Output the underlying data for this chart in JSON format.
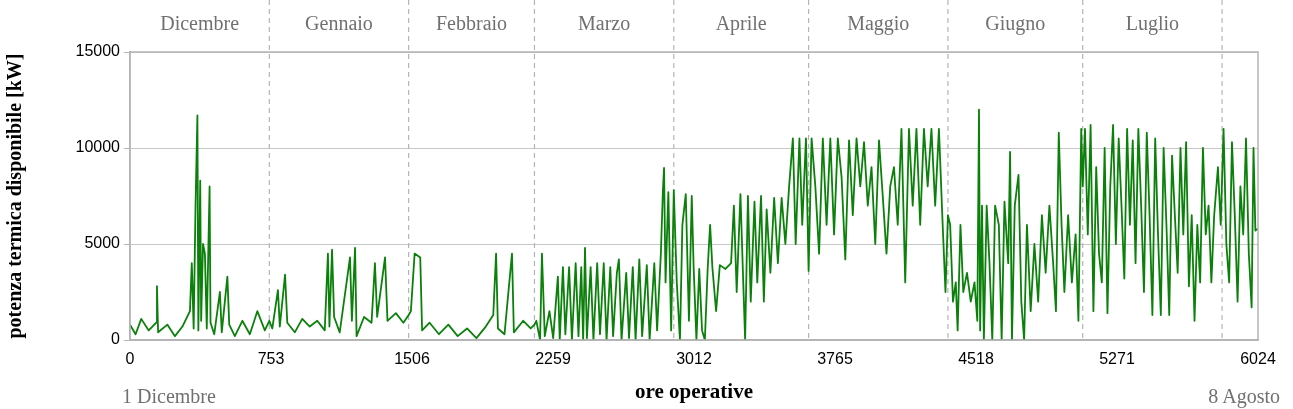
{
  "chart_data": {
    "type": "line",
    "xlabel": "ore operative",
    "ylabel": "potenza termica disponibile [kW]",
    "x": [
      0,
      30,
      60,
      100,
      140,
      144,
      150,
      200,
      240,
      280,
      320,
      330,
      340,
      350,
      360,
      365,
      375,
      380,
      390,
      400,
      410,
      425,
      430,
      450,
      480,
      490,
      520,
      530,
      560,
      600,
      640,
      680,
      720,
      744,
      760,
      790,
      800,
      828,
      840,
      880,
      920,
      960,
      1000,
      1040,
      1057,
      1065,
      1079,
      1090,
      1120,
      1175,
      1185,
      1202,
      1210,
      1250,
      1290,
      1308,
      1320,
      1362,
      1375,
      1420,
      1460,
      1488,
      1500,
      1520,
      1550,
      1560,
      1600,
      1650,
      1700,
      1750,
      1800,
      1850,
      1900,
      1940,
      1955,
      1965,
      2000,
      2040,
      2050,
      2100,
      2140,
      2160,
      2170,
      2190,
      2200,
      2215,
      2240,
      2260,
      2285,
      2295,
      2312,
      2325,
      2345,
      2360,
      2380,
      2395,
      2410,
      2420,
      2430,
      2440,
      2460,
      2475,
      2495,
      2510,
      2530,
      2545,
      2565,
      2580,
      2600,
      2611,
      2625,
      2650,
      2665,
      2685,
      2700,
      2720,
      2735,
      2760,
      2775,
      2800,
      2815,
      2835,
      2846,
      2852,
      2860,
      2875,
      2890,
      2904,
      2920,
      2937,
      2950,
      2968,
      2985,
      3000,
      3010,
      3025,
      3040,
      3055,
      3070,
      3085,
      3098,
      3110,
      3130,
      3150,
      3180,
      3210,
      3225,
      3240,
      3260,
      3275,
      3285,
      3300,
      3315,
      3335,
      3350,
      3370,
      3385,
      3400,
      3420,
      3440,
      3460,
      3480,
      3500,
      3520,
      3540,
      3555,
      3575,
      3590,
      3610,
      3624,
      3640,
      3660,
      3680,
      3700,
      3720,
      3740,
      3760,
      3780,
      3800,
      3820,
      3840,
      3860,
      3880,
      3900,
      3920,
      3940,
      3960,
      3980,
      4000,
      4020,
      4040,
      4060,
      4080,
      4100,
      4120,
      4140,
      4160,
      4180,
      4200,
      4220,
      4240,
      4260,
      4280,
      4300,
      4320,
      4340,
      4355,
      4368,
      4380,
      4395,
      4410,
      4420,
      4435,
      4450,
      4470,
      4490,
      4510,
      4525,
      4534,
      4540,
      4550,
      4560,
      4575,
      4590,
      4605,
      4620,
      4640,
      4655,
      4670,
      4690,
      4700,
      4710,
      4725,
      4745,
      4760,
      4775,
      4790,
      4810,
      4830,
      4850,
      4870,
      4890,
      4910,
      4930,
      4945,
      4960,
      4975,
      4990,
      5010,
      5030,
      5050,
      5065,
      5080,
      5088,
      5100,
      5115,
      5130,
      5145,
      5160,
      5175,
      5190,
      5205,
      5220,
      5235,
      5250,
      5265,
      5280,
      5295,
      5310,
      5325,
      5340,
      5355,
      5370,
      5385,
      5400,
      5415,
      5430,
      5445,
      5460,
      5475,
      5490,
      5505,
      5520,
      5535,
      5550,
      5565,
      5580,
      5595,
      5610,
      5625,
      5640,
      5655,
      5670,
      5685,
      5700,
      5715,
      5730,
      5745,
      5760,
      5775,
      5790,
      5810,
      5825,
      5840,
      5855,
      5870,
      5885,
      5900,
      5915,
      5930,
      5945,
      5960,
      5975,
      5990,
      6000,
      6010,
      6024
    ],
    "series": [
      {
        "color": "#0b800b",
        "values": [
          800,
          300,
          1100,
          500,
          900,
          2800,
          400,
          800,
          200,
          700,
          1500,
          4000,
          600,
          7000,
          11700,
          500,
          8300,
          1000,
          5000,
          4500,
          600,
          8000,
          900,
          300,
          2500,
          400,
          3300,
          800,
          200,
          1000,
          300,
          1500,
          500,
          1000,
          600,
          2600,
          700,
          3400,
          900,
          400,
          1100,
          700,
          1000,
          500,
          4500,
          700,
          4700,
          1200,
          400,
          4300,
          1000,
          4800,
          200,
          1200,
          900,
          4000,
          1200,
          4300,
          1000,
          1400,
          900,
          1300,
          1500,
          4500,
          4300,
          500,
          900,
          300,
          800,
          200,
          600,
          100,
          700,
          1300,
          4500,
          600,
          300,
          4500,
          400,
          1000,
          600,
          800,
          1000,
          0,
          4500,
          200,
          1500,
          100,
          3300,
          0,
          3800,
          300,
          3800,
          0,
          4000,
          200,
          3800,
          0,
          4800,
          100,
          3800,
          0,
          4000,
          300,
          4000,
          0,
          3800,
          200,
          3500,
          4200,
          0,
          3500,
          100,
          3800,
          0,
          4200,
          200,
          3900,
          0,
          4000,
          500,
          4500,
          7800,
          8960,
          3000,
          7700,
          500,
          7800,
          3000,
          0,
          6000,
          7600,
          1000,
          7500,
          3800,
          0,
          3700,
          500,
          0,
          3700,
          6000,
          3800,
          1500,
          3900,
          3700,
          4000,
          7000,
          2500,
          7600,
          3000,
          0,
          7500,
          2000,
          7200,
          3000,
          7500,
          2000,
          6800,
          3500,
          7400,
          4000,
          7400,
          5000,
          8000,
          10500,
          5000,
          10500,
          6000,
          10500,
          3600,
          10500,
          8000,
          4500,
          10500,
          6000,
          10500,
          5500,
          10500,
          8500,
          4200,
          10400,
          6500,
          10500,
          8000,
          10300,
          7000,
          9000,
          5000,
          10400,
          7500,
          4500,
          8000,
          9000,
          6000,
          11000,
          3000,
          11000,
          7000,
          11000,
          6000,
          11000,
          8000,
          11000,
          7000,
          11000,
          6000,
          2500,
          6500,
          6000,
          2000,
          3000,
          500,
          6000,
          2500,
          3500,
          2000,
          3000,
          1000,
          12000,
          500,
          7000,
          0,
          7000,
          4000,
          0,
          7000,
          6000,
          0,
          7200,
          4000,
          9800,
          0,
          7000,
          8600,
          2000,
          0,
          6000,
          1500,
          5000,
          2000,
          6500,
          3500,
          7000,
          4000,
          1500,
          10800,
          6000,
          2500,
          6500,
          3000,
          5500,
          1000,
          11000,
          8000,
          11000,
          5500,
          11200,
          1500,
          9000,
          4500,
          3000,
          10000,
          1400,
          8000,
          11200,
          5000,
          10500,
          7000,
          3200,
          11000,
          6000,
          10400,
          4000,
          11000,
          7000,
          2500,
          10800,
          6500,
          1300,
          10500,
          5500,
          1300,
          10000,
          6000,
          1300,
          9600,
          6500,
          3500,
          10000,
          5500,
          10300,
          2800,
          6500,
          1000,
          6000,
          3000,
          10000,
          5500,
          7000,
          3000,
          6500,
          9000,
          6000,
          11000,
          5000,
          3000,
          10300,
          6500,
          2000,
          8000,
          5500,
          10500,
          4500,
          1700,
          10000,
          5700,
          5800
        ]
      }
    ],
    "xlim": [
      0,
      6024
    ],
    "xticks": [
      0,
      753,
      1506,
      2259,
      3012,
      3765,
      4518,
      5271,
      6024
    ],
    "ylim": [
      0,
      15000
    ],
    "yticks": [
      0,
      5000,
      10000,
      15000
    ],
    "ref_lines": [
      {
        "axis": "x",
        "value": 744,
        "label": "Dicembre",
        "color": "#b4b4b4",
        "line_style": "dashed"
      },
      {
        "axis": "x",
        "value": 1488,
        "label": "Gennaio",
        "color": "#b4b4b4",
        "line_style": "dashed"
      },
      {
        "axis": "x",
        "value": 2160,
        "label": "Febbraio",
        "color": "#b4b4b4",
        "line_style": "dashed"
      },
      {
        "axis": "x",
        "value": 2904,
        "label": "Marzo",
        "color": "#b4b4b4",
        "line_style": "dashed"
      },
      {
        "axis": "x",
        "value": 3624,
        "label": "Aprile",
        "color": "#b4b4b4",
        "line_style": "dashed"
      },
      {
        "axis": "x",
        "value": 4368,
        "label": "Maggio",
        "color": "#b4b4b4",
        "line_style": "dashed"
      },
      {
        "axis": "x",
        "value": 5088,
        "label": "Giugno",
        "color": "#b4b4b4",
        "line_style": "dashed"
      },
      {
        "axis": "x",
        "value": 5832,
        "label": "Luglio",
        "color": "#b4b4b4",
        "line_style": "dashed"
      }
    ],
    "annotations": [
      "1 Dicembre",
      "8 Agosto"
    ],
    "grid": "y",
    "legend": false,
    "marker": "none",
    "line_style": "solid"
  }
}
